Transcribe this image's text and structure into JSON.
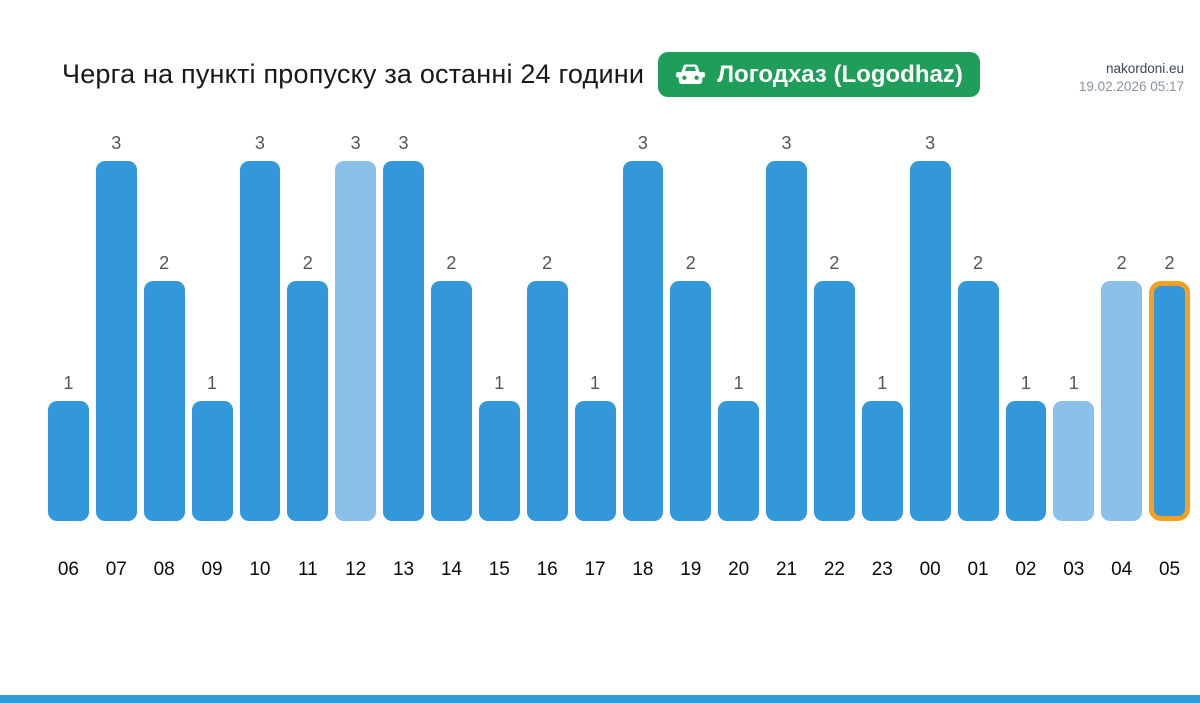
{
  "header": {
    "site": "nakordoni.eu",
    "timestamp": "19.02.2026 05:17",
    "title": "Черга на пункті пропуску за останні 24 години",
    "badge": {
      "label": "Логодхаз (Logodhaz)",
      "icon": "car-icon",
      "background": "#1e9e58",
      "text_color": "#ffffff"
    }
  },
  "chart_data": {
    "type": "bar",
    "title": "Черга на пункті пропуску за останні 24 години",
    "categories": [
      "06",
      "07",
      "08",
      "09",
      "10",
      "11",
      "12",
      "13",
      "14",
      "15",
      "16",
      "17",
      "18",
      "19",
      "20",
      "21",
      "22",
      "23",
      "00",
      "01",
      "02",
      "03",
      "04",
      "05"
    ],
    "values": [
      1,
      3,
      2,
      1,
      3,
      2,
      3,
      3,
      2,
      1,
      2,
      1,
      3,
      2,
      1,
      3,
      2,
      1,
      3,
      2,
      1,
      1,
      2,
      2
    ],
    "ylim": [
      0,
      3
    ],
    "grid": false,
    "legend": false,
    "data_labels": true,
    "bar_color_default": "#3397db",
    "bar_color_light": "#8bc0e8",
    "light_bars": [
      "12",
      "03",
      "04"
    ],
    "highlighted_bar": "05",
    "highlight_border_color": "#f5a020",
    "value_label_color": "#555555",
    "axis_label_color": "#0b0b0b"
  },
  "footer": {
    "strip_color": "#2e9bdb"
  }
}
